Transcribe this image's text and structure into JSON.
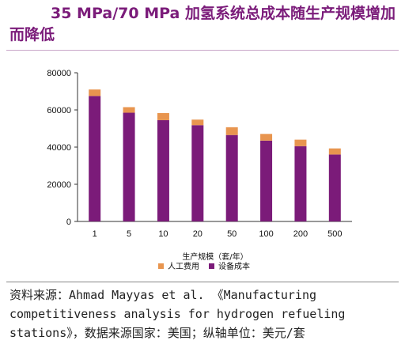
{
  "title": "35 MPa/70 MPa 加氢系统总成本随生产规模增加而降低",
  "source_note": "资料来源：Ahmad Mayyas et al. 《Manufacturing competitiveness analysis for hydrogen refueling stations》，数据来源国家：美国；纵轴单位：美元/套",
  "colors": {
    "title": "#7b1c7a",
    "equipment": "#7b1b79",
    "labor": "#e8954f"
  },
  "chart_data": {
    "type": "bar",
    "stacked": true,
    "categories": [
      "1",
      "5",
      "10",
      "20",
      "50",
      "100",
      "200",
      "500"
    ],
    "series": [
      {
        "name": "设备成本",
        "color": "#7b1b79",
        "values": [
          67500,
          58500,
          54500,
          51800,
          46500,
          43500,
          40500,
          36000
        ]
      },
      {
        "name": "人工费用",
        "color": "#e8954f",
        "values": [
          3500,
          3000,
          3800,
          3000,
          4200,
          3600,
          3500,
          3300
        ]
      }
    ],
    "xlabel": "生产规模（套/年）",
    "ylabel": "",
    "ylim": [
      0,
      80000
    ],
    "yticks": [
      0,
      20000,
      40000,
      60000,
      80000
    ],
    "grid": false,
    "legend": "bottom"
  }
}
